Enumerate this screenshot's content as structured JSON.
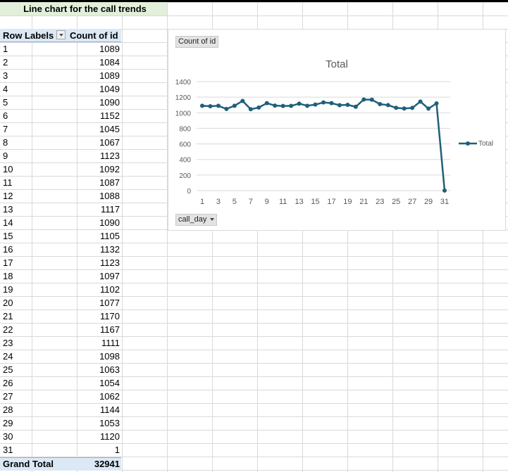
{
  "sheet": {
    "title": "Line chart for the call trends"
  },
  "pivot": {
    "row_labels_header": "Row Labels",
    "count_header": "Count of id",
    "rows": [
      {
        "label": "1",
        "value": "1089"
      },
      {
        "label": "2",
        "value": "1084"
      },
      {
        "label": "3",
        "value": "1089"
      },
      {
        "label": "4",
        "value": "1049"
      },
      {
        "label": "5",
        "value": "1090"
      },
      {
        "label": "6",
        "value": "1152"
      },
      {
        "label": "7",
        "value": "1045"
      },
      {
        "label": "8",
        "value": "1067"
      },
      {
        "label": "9",
        "value": "1123"
      },
      {
        "label": "10",
        "value": "1092"
      },
      {
        "label": "11",
        "value": "1087"
      },
      {
        "label": "12",
        "value": "1088"
      },
      {
        "label": "13",
        "value": "1117"
      },
      {
        "label": "14",
        "value": "1090"
      },
      {
        "label": "15",
        "value": "1105"
      },
      {
        "label": "16",
        "value": "1132"
      },
      {
        "label": "17",
        "value": "1123"
      },
      {
        "label": "18",
        "value": "1097"
      },
      {
        "label": "19",
        "value": "1102"
      },
      {
        "label": "20",
        "value": "1077"
      },
      {
        "label": "21",
        "value": "1170"
      },
      {
        "label": "22",
        "value": "1167"
      },
      {
        "label": "23",
        "value": "1111"
      },
      {
        "label": "24",
        "value": "1098"
      },
      {
        "label": "25",
        "value": "1063"
      },
      {
        "label": "26",
        "value": "1054"
      },
      {
        "label": "27",
        "value": "1062"
      },
      {
        "label": "28",
        "value": "1144"
      },
      {
        "label": "29",
        "value": "1053"
      },
      {
        "label": "30",
        "value": "1120"
      },
      {
        "label": "31",
        "value": "1"
      }
    ],
    "grand_total_label": "Grand Total",
    "grand_total_value": "32941"
  },
  "chart_buttons": {
    "value_field": "Count of id",
    "axis_field": "call_day"
  },
  "chart_data": {
    "type": "line",
    "title": "Total",
    "xlabel": "",
    "ylabel": "",
    "x": [
      1,
      2,
      3,
      4,
      5,
      6,
      7,
      8,
      9,
      10,
      11,
      12,
      13,
      14,
      15,
      16,
      17,
      18,
      19,
      20,
      21,
      22,
      23,
      24,
      25,
      26,
      27,
      28,
      29,
      30,
      31
    ],
    "x_tick_labels": [
      "1",
      "3",
      "5",
      "7",
      "9",
      "11",
      "13",
      "15",
      "17",
      "19",
      "21",
      "23",
      "25",
      "27",
      "29",
      "31"
    ],
    "y_ticks": [
      "0",
      "200",
      "400",
      "600",
      "800",
      "1000",
      "1200",
      "1400"
    ],
    "ylim": [
      0,
      1400
    ],
    "grid": true,
    "legend_position": "right",
    "series": [
      {
        "name": "Total",
        "color": "#1f5f7a",
        "values": [
          1089,
          1084,
          1089,
          1049,
          1090,
          1152,
          1045,
          1067,
          1123,
          1092,
          1087,
          1088,
          1117,
          1090,
          1105,
          1132,
          1123,
          1097,
          1102,
          1077,
          1170,
          1167,
          1111,
          1098,
          1063,
          1054,
          1062,
          1144,
          1053,
          1120,
          1
        ]
      }
    ]
  },
  "colors": {
    "header_fill": "#e2efda",
    "pivot_fill": "#dbe8f5",
    "line": "#1f5f7a"
  }
}
